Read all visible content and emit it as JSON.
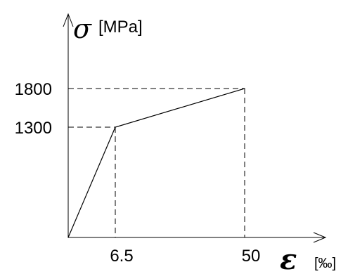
{
  "chart_data": {
    "type": "line",
    "title": "",
    "y_symbol": "σ",
    "y_unit": "[MPa]",
    "x_symbol": "ε",
    "x_unit": "[‰]",
    "x_ticks": [
      {
        "value": 6.5,
        "label": "6.5"
      },
      {
        "value": 50,
        "label": "50"
      }
    ],
    "y_ticks": [
      {
        "value": 1300,
        "label": "1300"
      },
      {
        "value": 1800,
        "label": "1800"
      }
    ],
    "series": [
      {
        "points": [
          {
            "x": 0,
            "y": 0
          },
          {
            "x": 6.5,
            "y": 1300
          },
          {
            "x": 50,
            "y": 1800
          }
        ]
      }
    ],
    "reference_lines": "dashed",
    "grid": false,
    "legend": "none",
    "colors": {
      "line": "#000000",
      "background": "#ffffff"
    }
  }
}
